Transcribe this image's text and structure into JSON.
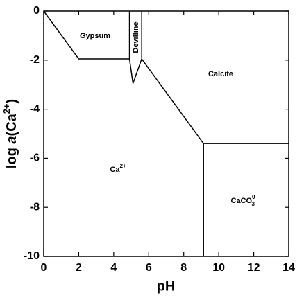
{
  "chart_data": {
    "type": "phase-diagram",
    "xlabel": "pH",
    "ylabel": {
      "prefix": "log ",
      "italic": "a",
      "open": "(Ca",
      "sup": "2+",
      "close": ")"
    },
    "xlim": [
      0,
      14
    ],
    "ylim": [
      -10,
      0
    ],
    "xticks": [
      0,
      2,
      4,
      6,
      8,
      10,
      12,
      14
    ],
    "yticks": [
      -10,
      -8,
      -6,
      -4,
      -2,
      0
    ],
    "color": "#000000",
    "lines": [
      {
        "x": [
          0,
          2,
          4.9
        ],
        "y": [
          0,
          -1.95,
          -1.95
        ]
      },
      {
        "x": [
          4.9,
          4.9,
          5.1,
          5.6,
          5.6
        ],
        "y": [
          0,
          -1.95,
          -2.95,
          -1.95,
          0
        ]
      },
      {
        "x": [
          5.6,
          9.13,
          14
        ],
        "y": [
          -1.95,
          -5.4,
          -5.4
        ]
      },
      {
        "x": [
          9.13,
          9.13
        ],
        "y": [
          -5.4,
          -10
        ]
      }
    ],
    "regions": [
      {
        "text": "Gypsum"
      },
      {
        "text": "Devilline"
      },
      {
        "text": "Calcite"
      },
      {
        "text": "Ca",
        "sup": "2+"
      },
      {
        "text": "CaCO",
        "sub": "3",
        "sup": "0"
      }
    ]
  }
}
